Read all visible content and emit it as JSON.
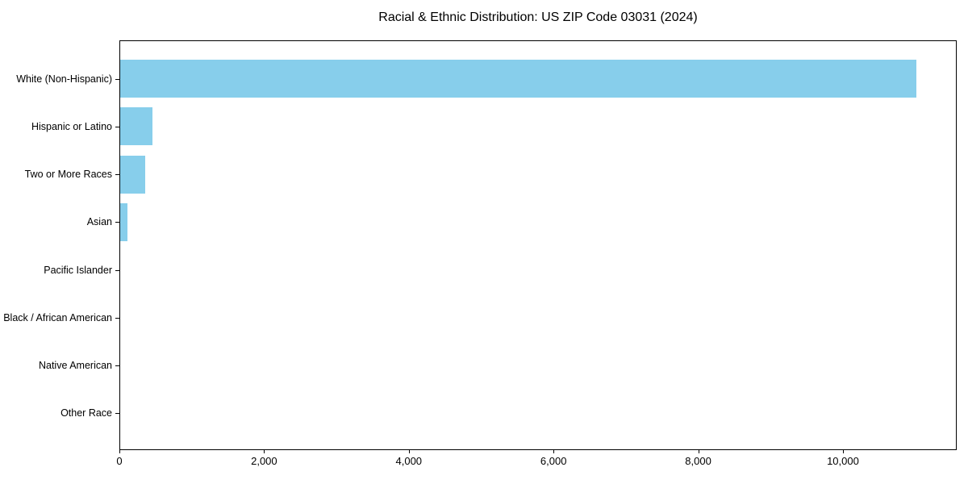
{
  "chart_data": {
    "type": "bar",
    "orientation": "horizontal",
    "title": "Racial & Ethnic Distribution: US ZIP Code 03031 (2024)",
    "categories": [
      "White (Non-Hispanic)",
      "Hispanic or Latino",
      "Two or More Races",
      "Asian",
      "Pacific Islander",
      "Black / African American",
      "Native American",
      "Other Race"
    ],
    "values": [
      11000,
      450,
      350,
      100,
      0,
      0,
      0,
      0
    ],
    "xlabel": "",
    "ylabel": "",
    "xlim": [
      0,
      11550
    ],
    "xticks": [
      0,
      2000,
      4000,
      6000,
      8000,
      10000
    ],
    "xtick_labels": [
      "0",
      "2,000",
      "4,000",
      "6,000",
      "8,000",
      "10,000"
    ],
    "grid": false,
    "legend": null,
    "bar_color": "#87CEEB",
    "background_color": "#ffffff",
    "text_color": "#000000"
  }
}
